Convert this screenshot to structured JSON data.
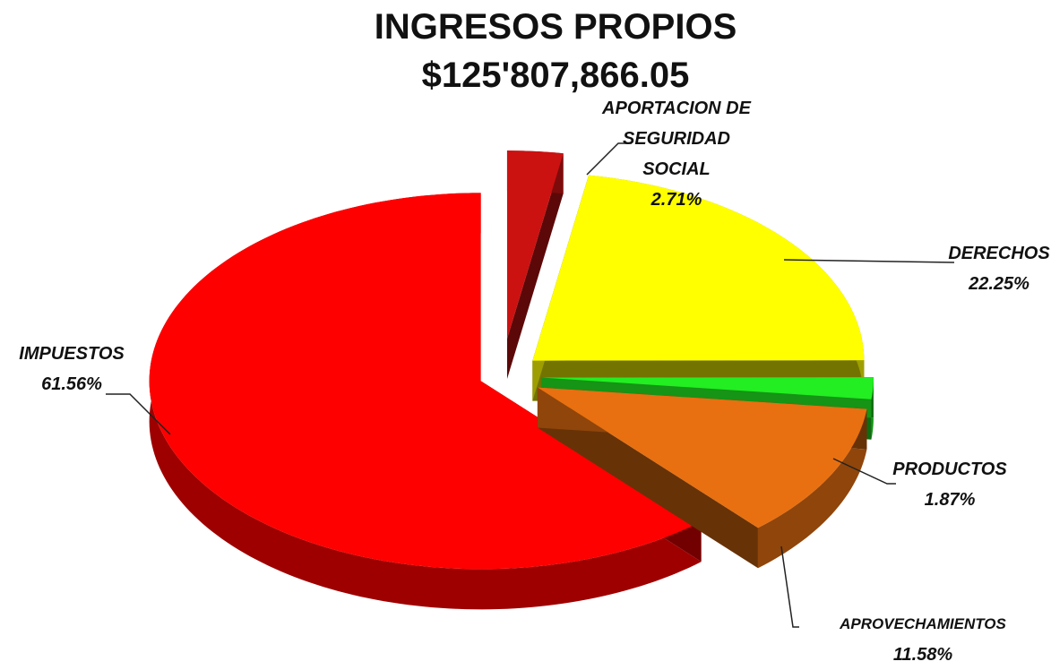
{
  "chart_data": {
    "type": "pie",
    "title": "INGRESOS PROPIOS",
    "subtitle": "$125'807,866.05",
    "categories": [
      "APORTACION DE SEGURIDAD SOCIAL",
      "DERECHOS",
      "PRODUCTOS",
      "APROVECHAMIENTOS",
      "IMPUESTOS"
    ],
    "values": [
      2.71,
      22.25,
      1.87,
      11.58,
      61.56
    ],
    "value_labels": [
      "2.71%",
      "22.25%",
      "1.87%",
      "11.58%",
      "61.56%"
    ],
    "colors": [
      "#cc1111",
      "#ffff00",
      "#22ee22",
      "#e87010",
      "#ff0000"
    ]
  }
}
